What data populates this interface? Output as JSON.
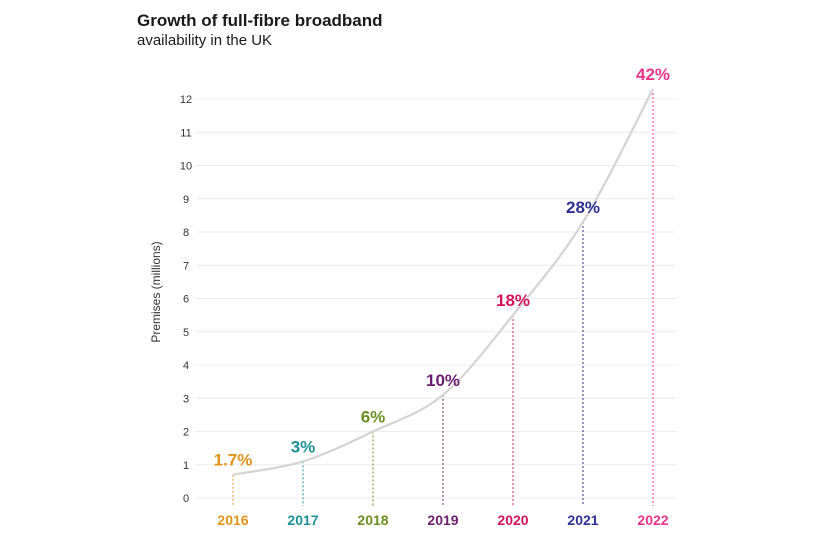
{
  "chart_data": {
    "type": "line",
    "title": "Growth of full-fibre broadband",
    "subtitle": "availability in the UK",
    "ylabel": "Premises (millions)",
    "xlabel": "",
    "ylim": [
      0,
      12
    ],
    "yticks": [
      0,
      1,
      2,
      3,
      4,
      5,
      6,
      7,
      8,
      9,
      10,
      11,
      12
    ],
    "grid": true,
    "categories": [
      "2016",
      "2017",
      "2018",
      "2019",
      "2020",
      "2021",
      "2022"
    ],
    "values": [
      0.7,
      1.1,
      2.0,
      3.1,
      5.5,
      8.3,
      12.3
    ],
    "data_labels": [
      "1.7%",
      "3%",
      "6%",
      "10%",
      "18%",
      "28%",
      "42%"
    ],
    "colors": [
      "#e0921a",
      "#1e8f94",
      "#6b8e23",
      "#6b1f6e",
      "#d4145a",
      "#2e3192",
      "#e8358b"
    ],
    "line_color": "#d4d4d4"
  }
}
